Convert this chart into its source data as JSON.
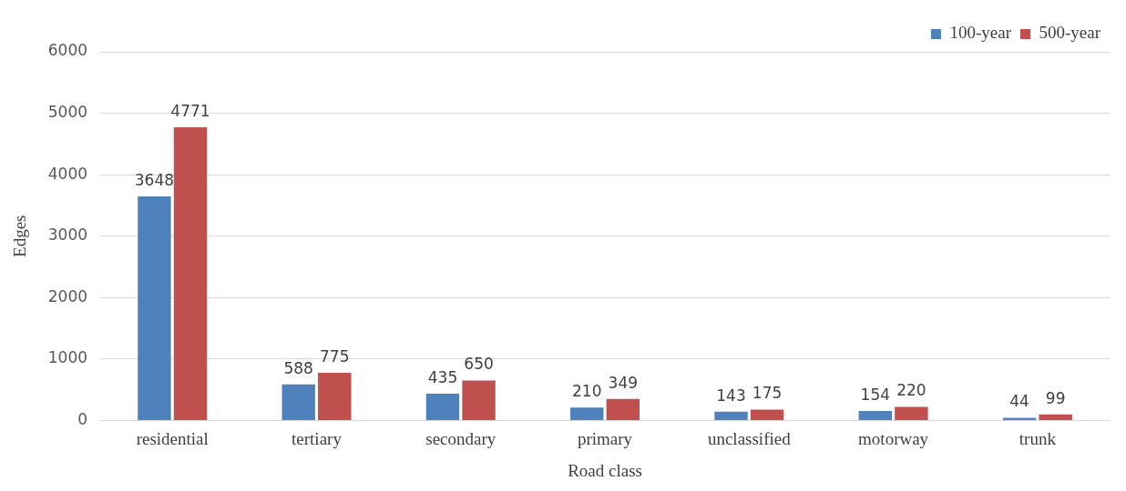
{
  "chart_data": {
    "type": "bar",
    "xlabel": "Road class",
    "ylabel": "Edges",
    "categories": [
      "residential",
      "tertiary",
      "secondary",
      "primary",
      "unclassified",
      "motorway",
      "trunk"
    ],
    "series": [
      {
        "name": "100-year",
        "color": "#4f81bd",
        "values": [
          3648,
          588,
          435,
          210,
          143,
          154,
          44
        ]
      },
      {
        "name": "500-year",
        "color": "#c0504d",
        "values": [
          4771,
          775,
          650,
          349,
          175,
          220,
          99
        ]
      }
    ],
    "ylim": [
      0,
      6000
    ],
    "yticks": [
      0,
      1000,
      2000,
      3000,
      4000,
      5000,
      6000
    ],
    "grid": "y",
    "legend": "top right",
    "data_labels": true
  }
}
